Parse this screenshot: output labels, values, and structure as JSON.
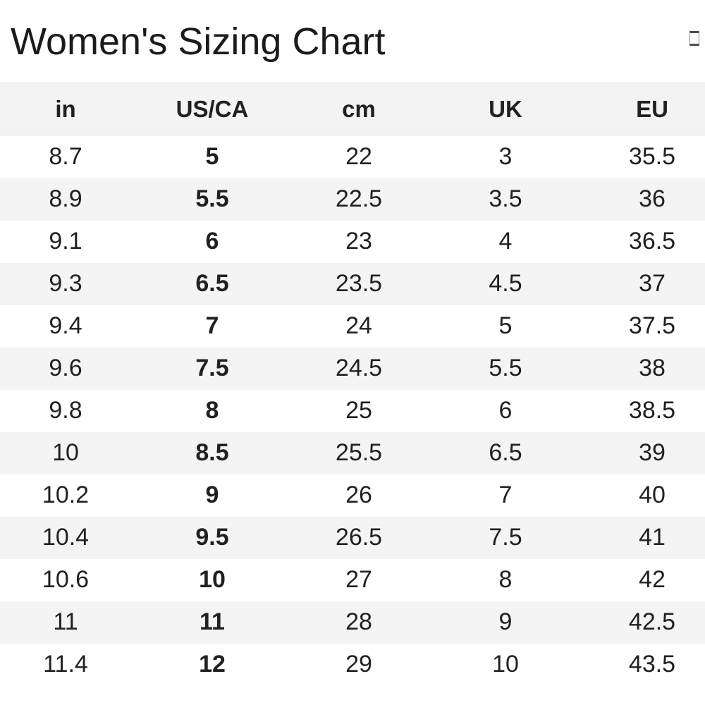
{
  "title": "Women's Sizing Chart",
  "icons": {
    "top_right": "empty-box-placeholder-glyph"
  },
  "colors": {
    "row_alt_bg": "#f4f4f4",
    "header_bg": "#f3f3f3",
    "text_color": "#212121",
    "title_color": "#1b1b1b"
  },
  "table": {
    "headers": [
      "in",
      "US/CA",
      "cm",
      "UK",
      "EU"
    ],
    "bold_column_index": 1,
    "rows": [
      [
        "8.7",
        "5",
        "22",
        "3",
        "35.5"
      ],
      [
        "8.9",
        "5.5",
        "22.5",
        "3.5",
        "36"
      ],
      [
        "9.1",
        "6",
        "23",
        "4",
        "36.5"
      ],
      [
        "9.3",
        "6.5",
        "23.5",
        "4.5",
        "37"
      ],
      [
        "9.4",
        "7",
        "24",
        "5",
        "37.5"
      ],
      [
        "9.6",
        "7.5",
        "24.5",
        "5.5",
        "38"
      ],
      [
        "9.8",
        "8",
        "25",
        "6",
        "38.5"
      ],
      [
        "10",
        "8.5",
        "25.5",
        "6.5",
        "39"
      ],
      [
        "10.2",
        "9",
        "26",
        "7",
        "40"
      ],
      [
        "10.4",
        "9.5",
        "26.5",
        "7.5",
        "41"
      ],
      [
        "10.6",
        "10",
        "27",
        "8",
        "42"
      ],
      [
        "11",
        "11",
        "28",
        "9",
        "42.5"
      ],
      [
        "11.4",
        "12",
        "29",
        "10",
        "43.5"
      ]
    ]
  }
}
